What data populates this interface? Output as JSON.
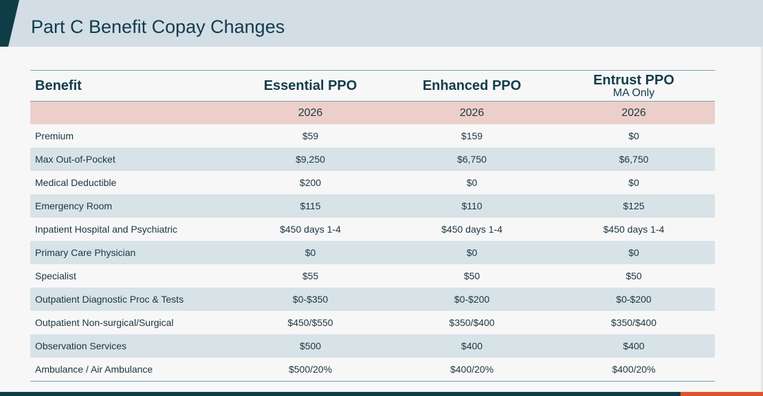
{
  "slide": {
    "title": "Part C Benefit Copay Changes"
  },
  "table": {
    "header": {
      "benefit": "Benefit",
      "plans": [
        {
          "name": "Essential PPO",
          "sub": ""
        },
        {
          "name": "Enhanced PPO",
          "sub": ""
        },
        {
          "name": "Entrust PPO",
          "sub": "MA Only"
        }
      ]
    },
    "years": [
      "2026",
      "2026",
      "2026"
    ],
    "rows": [
      {
        "benefit": "Premium",
        "values": [
          "$59",
          "$159",
          "$0"
        ]
      },
      {
        "benefit": "Max Out-of-Pocket",
        "values": [
          "$9,250",
          "$6,750",
          "$6,750"
        ]
      },
      {
        "benefit": "Medical Deductible",
        "values": [
          "$200",
          "$0",
          "$0"
        ]
      },
      {
        "benefit": "Emergency Room",
        "values": [
          "$115",
          "$110",
          "$125"
        ]
      },
      {
        "benefit": "Inpatient Hospital and Psychiatric",
        "values": [
          "$450 days 1-4",
          "$450 days 1-4",
          "$450 days 1-4"
        ]
      },
      {
        "benefit": "Primary Care Physician",
        "values": [
          "$0",
          "$0",
          "$0"
        ]
      },
      {
        "benefit": "Specialist",
        "values": [
          "$55",
          "$50",
          "$50"
        ]
      },
      {
        "benefit": "Outpatient Diagnostic Proc & Tests",
        "values": [
          "$0-$350",
          "$0-$200",
          "$0-$200"
        ]
      },
      {
        "benefit": "Outpatient Non-surgical/Surgical",
        "values": [
          "$450/$550",
          "$350/$400",
          "$350/$400"
        ]
      },
      {
        "benefit": "Observation Services",
        "values": [
          "$500",
          "$400",
          "$400"
        ]
      },
      {
        "benefit": "Ambulance / Air Ambulance",
        "values": [
          "$500/20%",
          "$400/20%",
          "$400/20%"
        ]
      }
    ]
  },
  "colors": {
    "title": "#123c4a",
    "header_band": "#d3dde6",
    "year_row": "#edcfca",
    "stripe": "#d8e3e8",
    "accent_dark": "#0e3d47",
    "accent_orange": "#e0532a"
  }
}
